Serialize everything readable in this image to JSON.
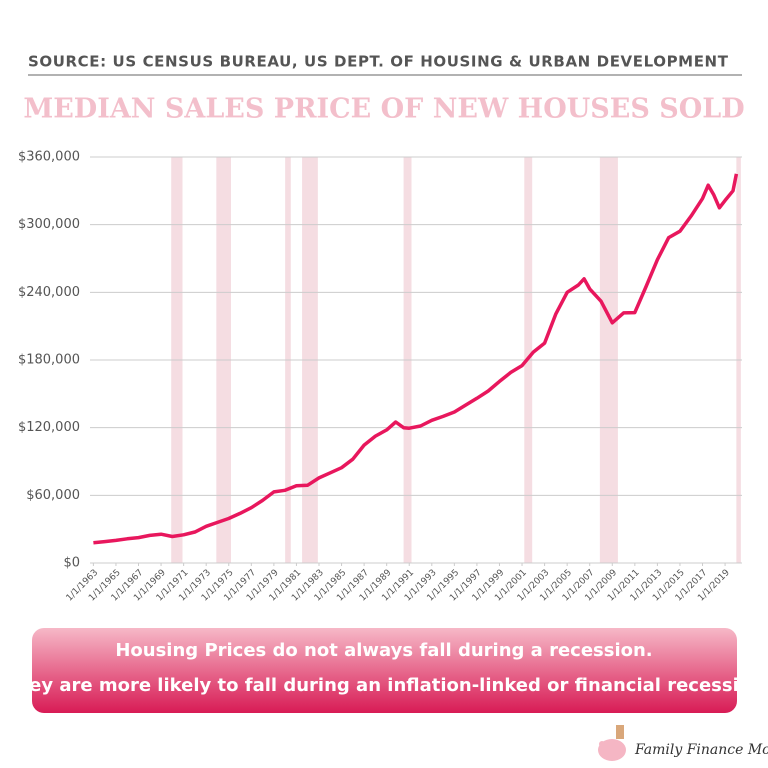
{
  "chart_data": {
    "type": "line",
    "source": "SOURCE: US CENSUS BUREAU, US DEPT. OF HOUSING & URBAN DEVELOPMENT",
    "title": "MEDIAN SALES PRICE OF NEW HOUSES SOLD",
    "x": [
      1963,
      1964,
      1965,
      1966,
      1967,
      1968,
      1969,
      1970,
      1971,
      1972,
      1973,
      1974,
      1975,
      1976,
      1977,
      1978,
      1979,
      1980,
      1981,
      1982,
      1983,
      1984,
      1985,
      1986,
      1987,
      1988,
      1989,
      1989.8,
      1990.5,
      1991,
      1992,
      1993,
      1994,
      1995,
      1996,
      1997,
      1998,
      1999,
      2000,
      2001,
      2002,
      2003,
      2004,
      2005,
      2006,
      2006.5,
      2007,
      2008,
      2009,
      2010,
      2011,
      2012,
      2013,
      2014,
      2015,
      2016,
      2017,
      2017.5,
      2018,
      2018.5,
      2019,
      2019.7,
      2020
    ],
    "values": [
      18000,
      19000,
      20000,
      21500,
      22500,
      24500,
      25500,
      23500,
      25000,
      27500,
      32500,
      36000,
      39500,
      44000,
      49000,
      55500,
      63000,
      64500,
      68500,
      69000,
      75500,
      80000,
      84500,
      92000,
      104500,
      112500,
      118000,
      125000,
      120000,
      119500,
      121500,
      126500,
      130000,
      133900,
      140000,
      146000,
      152500,
      161000,
      169000,
      175000,
      187000,
      195000,
      221000,
      240000,
      246500,
      252000,
      243000,
      232100,
      213000,
      221800,
      222000,
      245200,
      268900,
      288500,
      294200,
      307800,
      323100,
      335000,
      326400,
      315000,
      321500,
      330000,
      345000
    ],
    "color": "#e8175d",
    "recessions": [
      [
        1969.9,
        1970.9
      ],
      [
        1973.9,
        1975.2
      ],
      [
        1980.0,
        1980.5
      ],
      [
        1981.5,
        1982.9
      ],
      [
        1990.5,
        1991.2
      ],
      [
        2001.2,
        2001.9
      ],
      [
        2007.9,
        2009.5
      ],
      [
        2020.0,
        2020.4
      ]
    ],
    "recession_color": "#f5dde2",
    "xlim": [
      1962.7,
      2020.5
    ],
    "xticks": [
      {
        "value": 1963,
        "label": "1/1/1963"
      },
      {
        "value": 1965,
        "label": "1/1/1965"
      },
      {
        "value": 1967,
        "label": "1/1/1967"
      },
      {
        "value": 1969,
        "label": "1/1/1969"
      },
      {
        "value": 1971,
        "label": "1/1/1971"
      },
      {
        "value": 1973,
        "label": "1/1/1973"
      },
      {
        "value": 1975,
        "label": "1/1/1975"
      },
      {
        "value": 1977,
        "label": "1/1/1977"
      },
      {
        "value": 1979,
        "label": "1/1/1979"
      },
      {
        "value": 1981,
        "label": "1/1/1981"
      },
      {
        "value": 1983,
        "label": "1/1/1983"
      },
      {
        "value": 1985,
        "label": "1/1/1985"
      },
      {
        "value": 1987,
        "label": "1/1/1987"
      },
      {
        "value": 1989,
        "label": "1/1/1989"
      },
      {
        "value": 1991,
        "label": "1/1/1991"
      },
      {
        "value": 1993,
        "label": "1/1/1993"
      },
      {
        "value": 1995,
        "label": "1/1/1995"
      },
      {
        "value": 1997,
        "label": "1/1/1997"
      },
      {
        "value": 1999,
        "label": "1/1/1999"
      },
      {
        "value": 2001,
        "label": "1/1/2001"
      },
      {
        "value": 2003,
        "label": "1/1/2003"
      },
      {
        "value": 2005,
        "label": "1/1/2005"
      },
      {
        "value": 2007,
        "label": "1/1/2007"
      },
      {
        "value": 2009,
        "label": "1/1/2009"
      },
      {
        "value": 2011,
        "label": "1/1/2011"
      },
      {
        "value": 2013,
        "label": "1/1/2013"
      },
      {
        "value": 2015,
        "label": "1/1/2015"
      },
      {
        "value": 2017,
        "label": "1/1/2017"
      },
      {
        "value": 2019,
        "label": "1/1/2019"
      }
    ],
    "ylim": [
      0,
      360000
    ],
    "yticks": [
      {
        "value": 0,
        "label": "$0"
      },
      {
        "value": 60000,
        "label": "$60,000"
      },
      {
        "value": 120000,
        "label": "$120,000"
      },
      {
        "value": 180000,
        "label": "$180,000"
      },
      {
        "value": 240000,
        "label": "$240,000"
      },
      {
        "value": 300000,
        "label": "$300,000"
      },
      {
        "value": 360000,
        "label": "$360,000"
      }
    ],
    "grid": true,
    "note": [
      "Housing Prices do not always fall during a recession.",
      "They are more likely to fall during an inflation-linked or financial recession"
    ]
  },
  "brand": "Family Finance Mom"
}
